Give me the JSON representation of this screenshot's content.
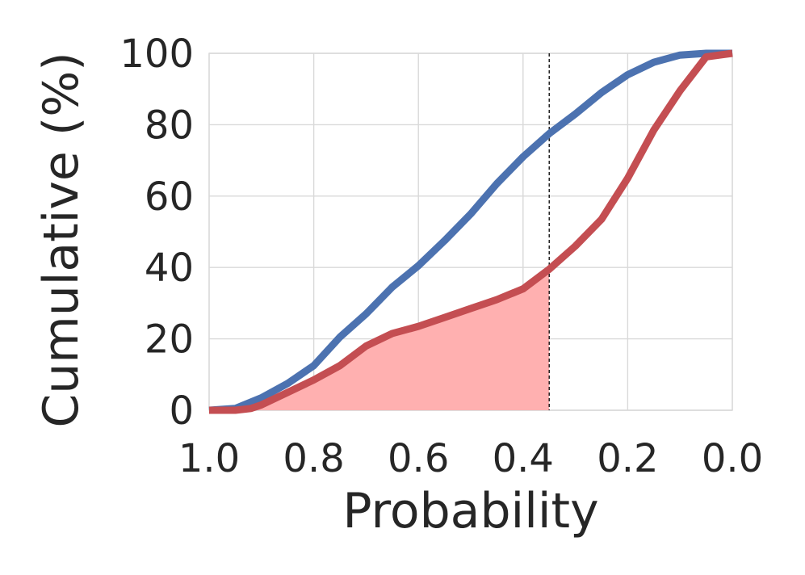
{
  "chart_data": {
    "type": "line",
    "xlabel": "Probability",
    "ylabel": "Cumulative (%)",
    "xlim": [
      1.0,
      0.0
    ],
    "ylim": [
      0,
      100
    ],
    "x_reversed": true,
    "grid": true,
    "legend": "none",
    "xticks": [
      1.0,
      0.8,
      0.6,
      0.4,
      0.2,
      0.0
    ],
    "xtick_labels": [
      "1.0",
      "0.8",
      "0.6",
      "0.4",
      "0.2",
      "0.0"
    ],
    "yticks": [
      0,
      20,
      40,
      60,
      80,
      100
    ],
    "ytick_labels": [
      "0",
      "20",
      "40",
      "60",
      "80",
      "100"
    ],
    "threshold_x": 0.35,
    "series": [
      {
        "color": "#4c72b0",
        "points": [
          [
            1.0,
            0
          ],
          [
            0.95,
            0.5
          ],
          [
            0.9,
            3.5
          ],
          [
            0.85,
            7.5
          ],
          [
            0.8,
            12.5
          ],
          [
            0.75,
            20.5
          ],
          [
            0.7,
            27
          ],
          [
            0.65,
            34.5
          ],
          [
            0.6,
            40.5
          ],
          [
            0.55,
            47.5
          ],
          [
            0.5,
            55
          ],
          [
            0.45,
            63.5
          ],
          [
            0.4,
            71
          ],
          [
            0.35,
            77.5
          ],
          [
            0.3,
            83
          ],
          [
            0.25,
            89
          ],
          [
            0.2,
            94
          ],
          [
            0.15,
            97.5
          ],
          [
            0.1,
            99.5
          ],
          [
            0.05,
            100
          ],
          [
            0.0,
            100
          ]
        ]
      },
      {
        "color": "#c44e52",
        "fill_color": "#ffb0b0",
        "points": [
          [
            1.0,
            0
          ],
          [
            0.95,
            0
          ],
          [
            0.92,
            0.5
          ],
          [
            0.9,
            1.5
          ],
          [
            0.85,
            5
          ],
          [
            0.8,
            8.5
          ],
          [
            0.75,
            12.5
          ],
          [
            0.7,
            18
          ],
          [
            0.65,
            21.5
          ],
          [
            0.6,
            23.5
          ],
          [
            0.55,
            26
          ],
          [
            0.5,
            28.5
          ],
          [
            0.45,
            31
          ],
          [
            0.4,
            34
          ],
          [
            0.35,
            39.5
          ],
          [
            0.3,
            46
          ],
          [
            0.25,
            53.5
          ],
          [
            0.2,
            65
          ],
          [
            0.15,
            78.5
          ],
          [
            0.1,
            89.5
          ],
          [
            0.05,
            99
          ],
          [
            0.0,
            100
          ]
        ]
      }
    ]
  }
}
